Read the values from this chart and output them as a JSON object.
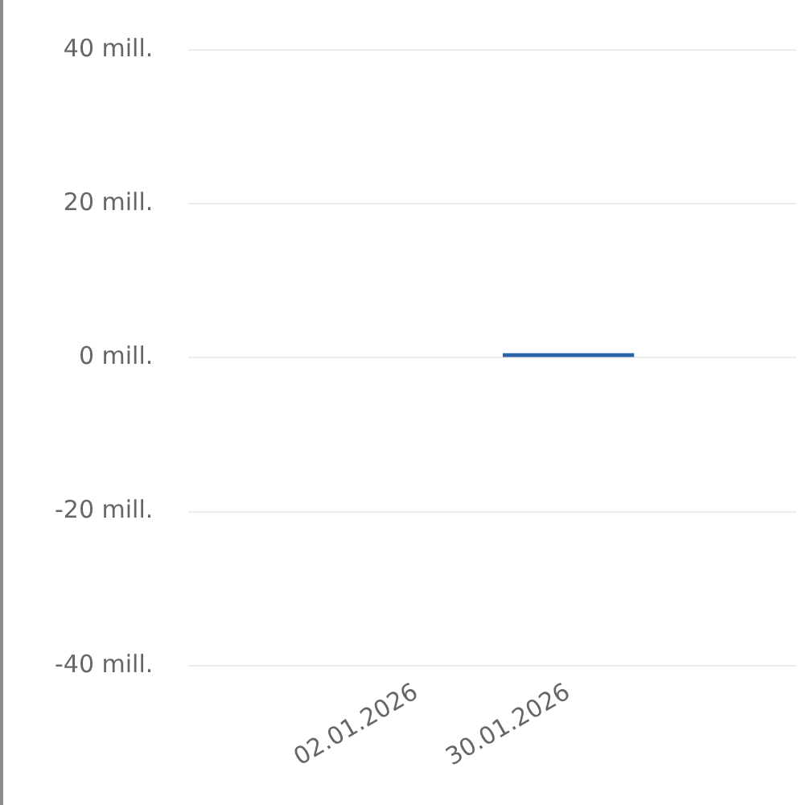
{
  "chart_data": {
    "type": "bar",
    "categories": [
      null,
      "02.01.2026",
      "30.01.2026",
      null
    ],
    "series": [
      {
        "color": "#2b63ab",
        "values": [
          null,
          null,
          0.6,
          null
        ]
      }
    ],
    "ylim": [
      -40,
      40
    ],
    "yticks": [
      {
        "value": -40,
        "label": "-40 mill."
      },
      {
        "value": -20,
        "label": "-20 mill."
      },
      {
        "value": 0,
        "label": "0 mill."
      },
      {
        "value": 20,
        "label": "20 mill."
      },
      {
        "value": 40,
        "label": "40 mill."
      }
    ],
    "grid": "y",
    "legend": false
  }
}
